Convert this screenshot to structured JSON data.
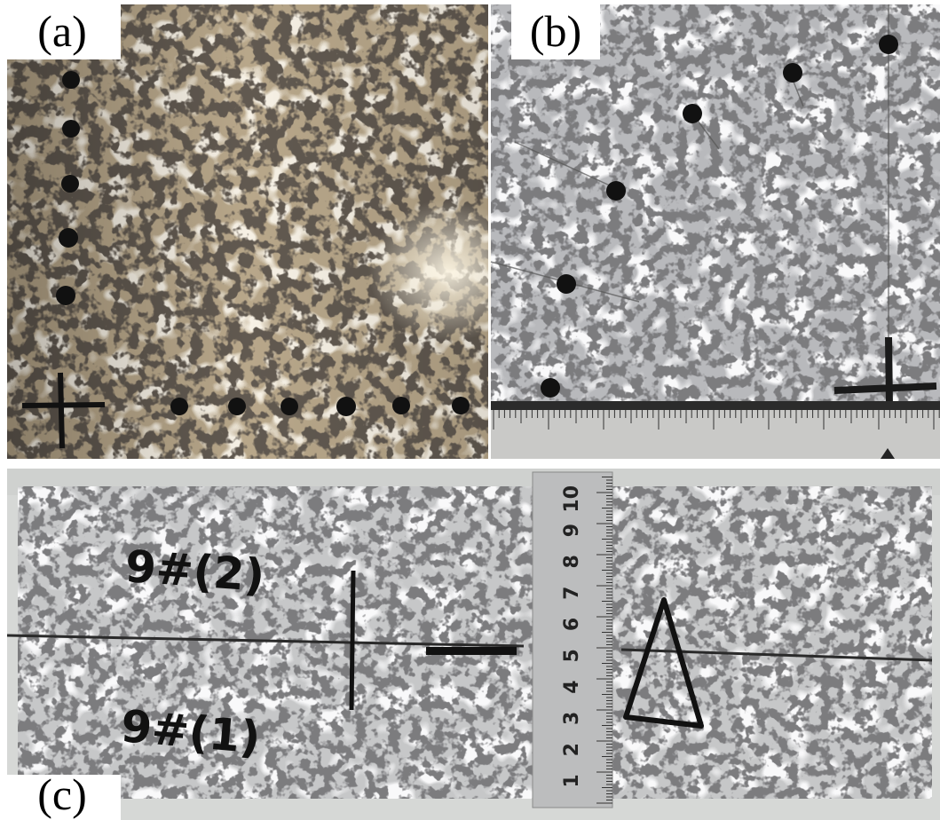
{
  "panels": [
    {
      "label": "(a)"
    },
    {
      "label": "(b)"
    },
    {
      "label": "(c)",
      "upper_marking": "9#(2)",
      "lower_marking": "9#(1)",
      "ruler_numbers": [
        "1",
        "2",
        "3",
        "4",
        "5",
        "6",
        "7",
        "8",
        "9",
        "10"
      ]
    }
  ]
}
